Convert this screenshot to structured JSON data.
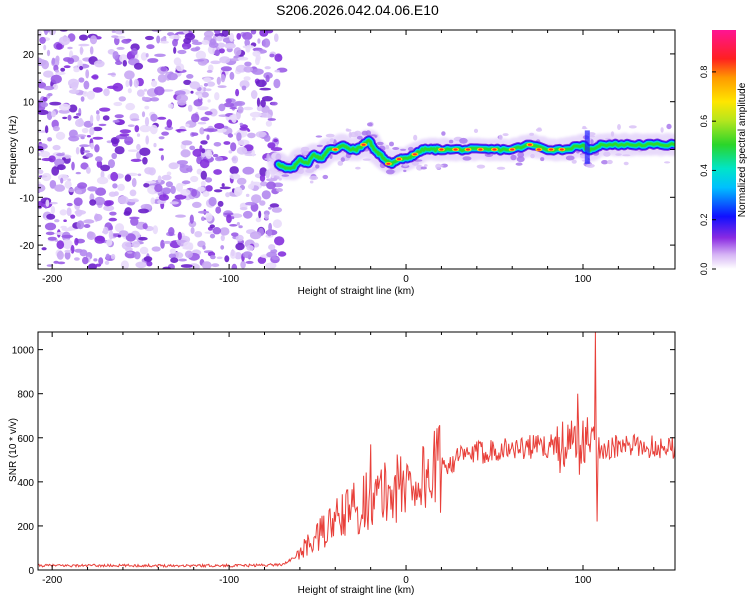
{
  "title": "S206.2026.042.04.06.E10",
  "chart_data": [
    {
      "type": "heatmap",
      "xlabel": "Height of straight line (km)",
      "ylabel": "Frequency (Hz)",
      "xlim": [
        -208,
        152
      ],
      "ylim": [
        -25,
        25
      ],
      "xticks": [
        -200,
        -100,
        0,
        100
      ],
      "yticks": [
        -20,
        -10,
        0,
        10,
        20
      ],
      "noise_region_x": [
        -208,
        -70
      ],
      "ridge": {
        "x": [
          -72,
          -68,
          -64,
          -60,
          -56,
          -52,
          -48,
          -44,
          -40,
          -36,
          -32,
          -28,
          -24,
          -21,
          -18,
          -15,
          -12,
          -8,
          -4,
          0,
          5,
          10,
          15,
          20,
          30,
          40,
          50,
          60,
          70,
          80,
          90,
          100,
          102,
          105,
          110,
          120,
          130,
          140,
          152
        ],
        "y": [
          -3,
          -4,
          -4,
          -2,
          -3,
          -1,
          -2,
          0,
          0,
          1,
          0,
          0,
          1,
          2,
          0,
          -1,
          -2,
          -3,
          -2,
          -2,
          -1,
          0,
          0,
          0,
          0,
          0,
          0,
          0,
          1,
          0,
          0,
          1,
          0,
          0,
          1,
          1,
          1,
          1,
          1
        ]
      },
      "colorbar": {
        "label": "Normalized spectral amplitude",
        "ticks": [
          "0.0",
          "0.2",
          "0.4",
          "0.6",
          "0.8"
        ],
        "tick_values": [
          0,
          0.2,
          0.4,
          0.6,
          0.8
        ],
        "range": [
          0,
          0.97
        ]
      }
    },
    {
      "type": "line",
      "xlabel": "Height of straight line (km)",
      "ylabel": "SNR (10 * v/v)",
      "xlim": [
        -208,
        152
      ],
      "ylim": [
        0,
        1080
      ],
      "xticks": [
        -200,
        -100,
        0,
        100
      ],
      "yticks": [
        0,
        200,
        400,
        600,
        800,
        1000
      ],
      "color": "#e8403a",
      "series": [
        {
          "name": "SNR",
          "x": [
            -208,
            -190,
            -170,
            -150,
            -130,
            -110,
            -90,
            -70,
            -62,
            -56,
            -50,
            -45,
            -40,
            -35,
            -30,
            -25,
            -20,
            -15,
            -10,
            -5,
            0,
            5,
            10,
            15,
            20,
            25,
            30,
            35,
            40,
            45,
            50,
            55,
            60,
            65,
            70,
            75,
            80,
            85,
            90,
            95,
            100,
            104,
            106,
            108,
            110,
            115,
            120,
            130,
            140,
            152
          ],
          "y": [
            20,
            20,
            20,
            20,
            20,
            20,
            20,
            25,
            60,
            110,
            150,
            190,
            220,
            250,
            280,
            300,
            330,
            330,
            360,
            370,
            390,
            400,
            420,
            440,
            470,
            490,
            510,
            520,
            530,
            540,
            550,
            550,
            550,
            555,
            560,
            560,
            560,
            570,
            570,
            560,
            560,
            600,
            570,
            560,
            560,
            550,
            560,
            560,
            560,
            560
          ]
        }
      ],
      "annotations": [
        {
          "x": 107,
          "y": 1080
        },
        {
          "x": 108,
          "y": 220
        },
        {
          "x": 97,
          "y": 800
        },
        {
          "x": -20,
          "y": 570
        }
      ]
    }
  ]
}
